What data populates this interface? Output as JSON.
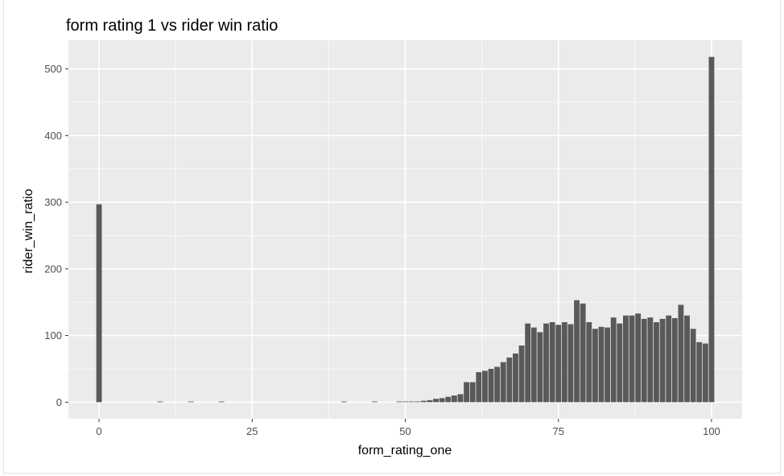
{
  "chart_data": {
    "type": "bar",
    "title": "form rating 1 vs rider win ratio",
    "xlabel": "form_rating_one",
    "ylabel": "rider_win_ratio",
    "xlim": [
      -5,
      105
    ],
    "ylim": [
      -25,
      543
    ],
    "x_ticks": [
      0,
      25,
      50,
      75,
      100
    ],
    "y_ticks": [
      0,
      100,
      200,
      300,
      400,
      500
    ],
    "grid": true,
    "bar_color": "#595959",
    "panel_color": "#ebebeb",
    "x": [
      0,
      10,
      15,
      20,
      40,
      45,
      49,
      50,
      51,
      52,
      53,
      54,
      55,
      56,
      57,
      58,
      59,
      60,
      61,
      62,
      63,
      64,
      65,
      66,
      67,
      68,
      69,
      70,
      71,
      72,
      73,
      74,
      75,
      76,
      77,
      78,
      79,
      80,
      81,
      82,
      83,
      84,
      85,
      86,
      87,
      88,
      89,
      90,
      91,
      92,
      93,
      94,
      95,
      96,
      97,
      98,
      99,
      100
    ],
    "values": [
      297,
      0.5,
      0.5,
      0.5,
      0.5,
      0.5,
      1,
      1,
      1,
      1,
      2,
      3,
      5,
      6,
      8,
      10,
      12,
      30,
      30,
      45,
      47,
      50,
      53,
      60,
      67,
      73,
      85,
      118,
      112,
      105,
      118,
      120,
      116,
      120,
      117,
      153,
      148,
      120,
      110,
      113,
      112,
      127,
      118,
      130,
      130,
      133,
      125,
      127,
      120,
      125,
      130,
      126,
      146,
      130,
      110,
      90,
      88,
      518
    ]
  }
}
